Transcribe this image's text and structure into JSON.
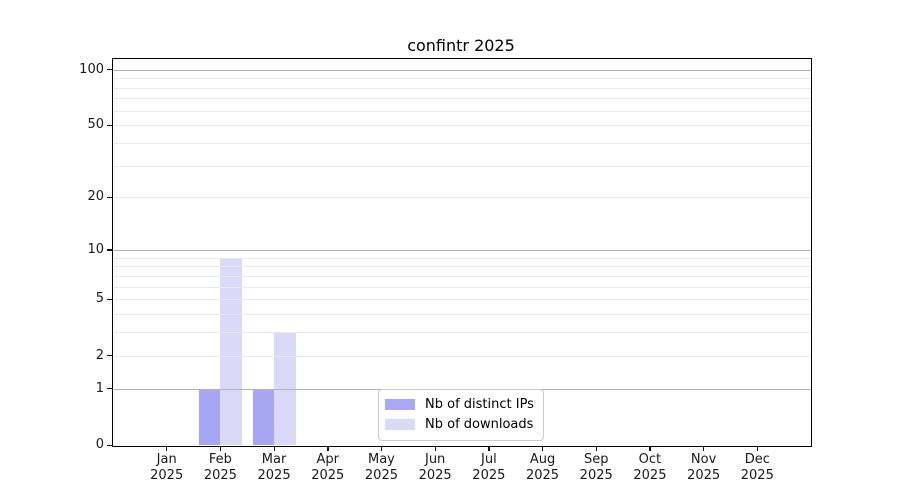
{
  "chart_data": {
    "type": "bar",
    "title": "confintr 2025",
    "categories": [
      "Jan",
      "Feb",
      "Mar",
      "Apr",
      "May",
      "Jun",
      "Jul",
      "Aug",
      "Sep",
      "Oct",
      "Nov",
      "Dec"
    ],
    "x_tick_sublabel": "2025",
    "series": [
      {
        "name": "Nb of distinct IPs",
        "color": "rgba(151,151,240,0.85)",
        "legend_color": "#a9a9f3",
        "values": [
          0,
          1,
          1,
          0,
          0,
          0,
          0,
          0,
          0,
          0,
          0,
          0
        ]
      },
      {
        "name": "Nb of downloads",
        "color": "rgba(210,210,247,0.82)",
        "legend_color": "#d9d9f8",
        "values": [
          0,
          9,
          3,
          0,
          0,
          0,
          0,
          0,
          0,
          0,
          0,
          0
        ]
      }
    ],
    "y_axis": {
      "scale": "log10(value+1)",
      "tick_values": [
        0,
        1,
        2,
        5,
        10,
        20,
        50,
        100
      ],
      "major_grid_values": [
        1,
        10,
        100
      ],
      "minor_grid_values": [
        2,
        3,
        4,
        5,
        6,
        7,
        8,
        9,
        20,
        30,
        40,
        50,
        60,
        70,
        80,
        90
      ],
      "max_value": 114
    },
    "legend_position": "lower-center",
    "grid": true
  },
  "colors": {
    "grid_major": "#b3b3b3",
    "grid_minor": "#e9e9e9",
    "axis": "#000000",
    "tick_label": "#1a1a1a",
    "legend_border": "#cccccc"
  }
}
